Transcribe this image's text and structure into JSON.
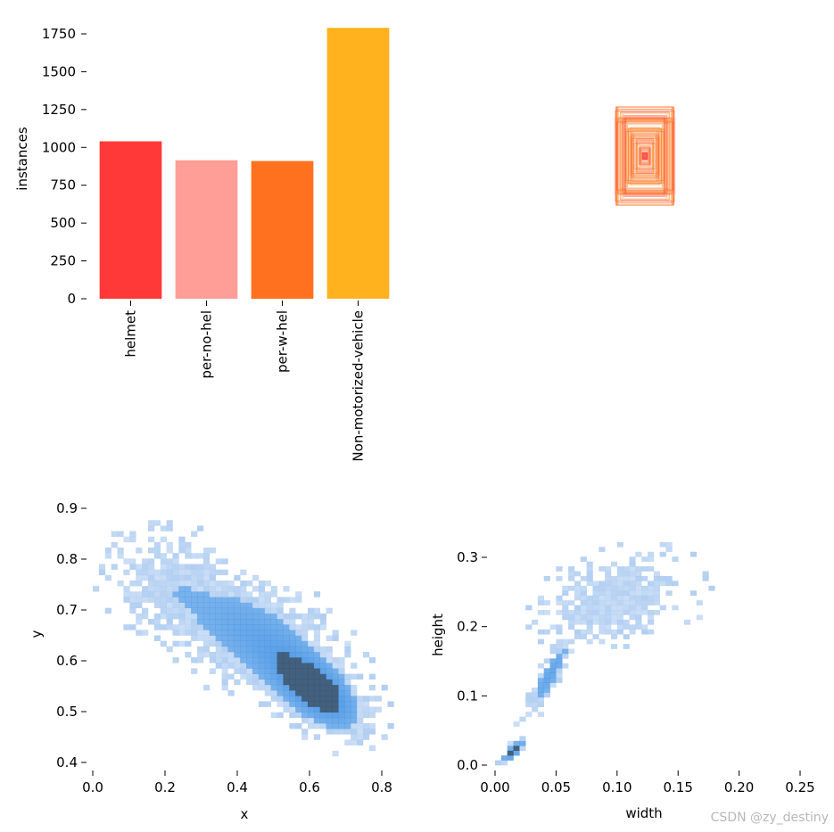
{
  "colors": {
    "helmet": "#ff3838",
    "per_no_hel": "#ff9d97",
    "per_w_hel": "#ff701f",
    "non_motorized_vehicle": "#ffb21d",
    "hist_light": "#a9c9f0",
    "hist_mid": "#3d8fe3",
    "hist_dark": "#2f4f6f"
  },
  "watermark": "CSDN @zy_destiny",
  "chart_data": [
    {
      "type": "bar",
      "categories": [
        "helmet",
        "per-no-hel",
        "per-w-hel",
        "Non-motorized-vehicle"
      ],
      "values": [
        1040,
        915,
        910,
        1790
      ],
      "bar_colors": [
        "#ff3838",
        "#ff9d97",
        "#ff701f",
        "#ffb21d"
      ],
      "xlabel": "",
      "ylabel": "instances",
      "ylim": [
        0,
        1800
      ],
      "yticks": [
        0,
        250,
        500,
        750,
        1000,
        1250,
        1500,
        1750
      ],
      "grid": false
    },
    {
      "type": "box-overlay",
      "description_free": true,
      "box_colors": [
        "#ff3838",
        "#ff9d97",
        "#ff701f",
        "#ffb21d"
      ]
    },
    {
      "type": "heatmap",
      "xlabel": "x",
      "ylabel": "y",
      "xlim": [
        0.0,
        0.85
      ],
      "ylim": [
        0.38,
        0.92
      ],
      "xticks": [
        "0.0",
        "0.2",
        "0.4",
        "0.6",
        "0.8"
      ],
      "yticks": [
        "0.4",
        "0.5",
        "0.6",
        "0.7",
        "0.8",
        "0.9"
      ],
      "xtick_values": [
        0.0,
        0.2,
        0.4,
        0.6,
        0.8
      ],
      "ytick_values": [
        0.4,
        0.5,
        0.6,
        0.7,
        0.8,
        0.9
      ],
      "bins": 50,
      "clusters": [
        {
          "cx": 0.62,
          "cy": 0.54,
          "sx": 0.08,
          "sy": 0.05,
          "w": 1.0,
          "corr": -0.6
        },
        {
          "cx": 0.45,
          "cy": 0.65,
          "sx": 0.13,
          "sy": 0.07,
          "w": 0.55,
          "corr": -0.5
        },
        {
          "cx": 0.2,
          "cy": 0.75,
          "sx": 0.09,
          "sy": 0.06,
          "w": 0.25,
          "corr": -0.2
        }
      ]
    },
    {
      "type": "heatmap",
      "xlabel": "width",
      "ylabel": "height",
      "xlim": [
        0.0,
        0.25
      ],
      "ylim": [
        0.0,
        0.35
      ],
      "xticks": [
        "0.00",
        "0.05",
        "0.10",
        "0.15",
        "0.20",
        "0.25"
      ],
      "yticks": [
        "0.0",
        "0.1",
        "0.2",
        "0.3"
      ],
      "xtick_values": [
        0.0,
        0.05,
        0.1,
        0.15,
        0.2,
        0.25
      ],
      "ytick_values": [
        0.0,
        0.1,
        0.2,
        0.3
      ],
      "bins": 50,
      "clusters": [
        {
          "cx": 0.015,
          "cy": 0.02,
          "sx": 0.006,
          "sy": 0.01,
          "w": 1.0,
          "corr": 0.8
        },
        {
          "cx": 0.045,
          "cy": 0.13,
          "sx": 0.012,
          "sy": 0.035,
          "w": 0.6,
          "corr": 0.9
        },
        {
          "cx": 0.1,
          "cy": 0.24,
          "sx": 0.035,
          "sy": 0.035,
          "w": 0.35,
          "corr": 0.3
        }
      ]
    }
  ]
}
